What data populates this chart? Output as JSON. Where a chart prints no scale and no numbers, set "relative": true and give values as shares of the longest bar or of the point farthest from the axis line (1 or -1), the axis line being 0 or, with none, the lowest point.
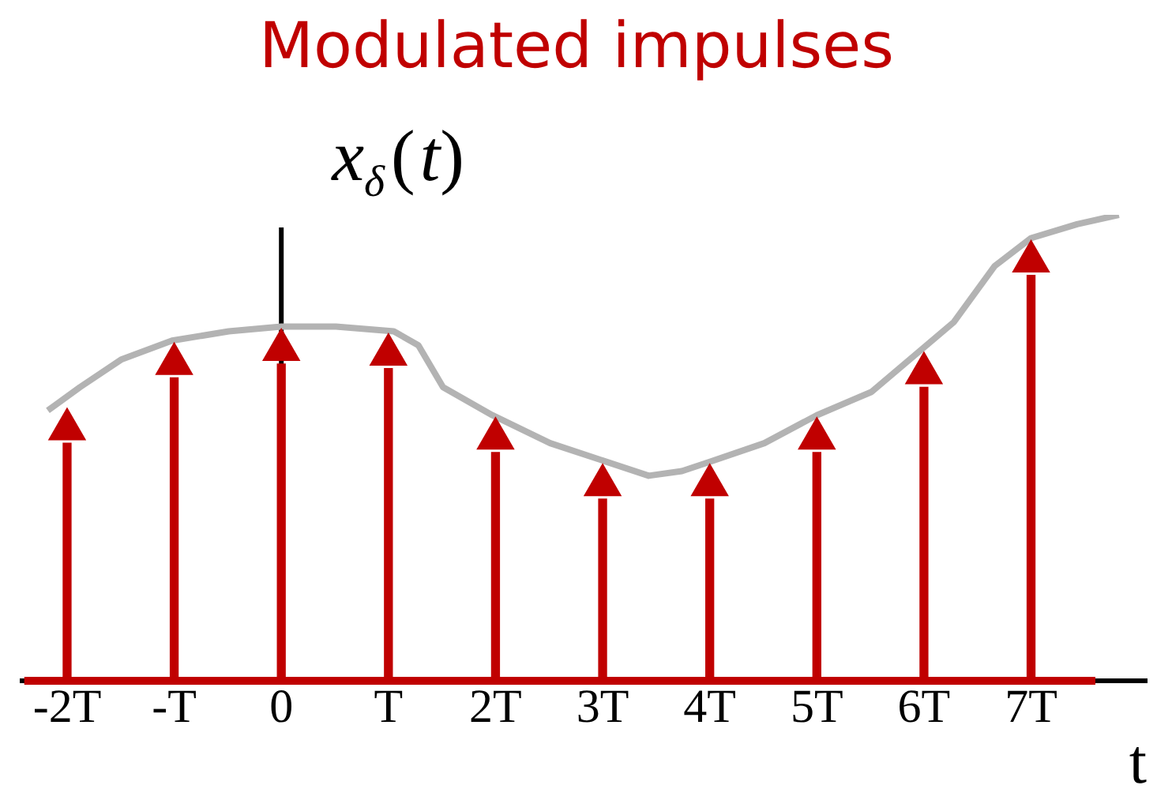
{
  "chart_data": {
    "type": "bar",
    "title": "Modulated impulses",
    "xlabel": "t",
    "ylabel": "x$_{δ}$(t)",
    "relative": true,
    "legend": false,
    "xlim": [
      -2.42,
      8.08
    ],
    "xticks": [
      {
        "value": -2,
        "label": "-2T"
      },
      {
        "value": -1,
        "label": "-T"
      },
      {
        "value": 0,
        "label": "0"
      },
      {
        "value": 1,
        "label": "T"
      },
      {
        "value": 2,
        "label": "2T"
      },
      {
        "value": 3,
        "label": "3T"
      },
      {
        "value": 4,
        "label": "4T"
      },
      {
        "value": 5,
        "label": "5T"
      },
      {
        "value": 6,
        "label": "6T"
      },
      {
        "value": 7,
        "label": "7T"
      }
    ],
    "series": [
      {
        "color": "#c00000",
        "x": [
          -2,
          -1,
          0,
          1,
          2,
          3,
          4,
          5,
          6,
          7
        ],
        "values": [
          0.51,
          0.65,
          0.68,
          0.67,
          0.49,
          0.39,
          0.39,
          0.49,
          0.63,
          0.87
        ]
      },
      {
        "type": "scatter",
        "color": "#c00000",
        "marker": "triangle",
        "x": [
          -2,
          -1,
          0,
          1,
          2,
          3,
          4,
          5,
          6,
          7
        ],
        "values": [
          0.54,
          0.68,
          0.71,
          0.7,
          0.52,
          0.42,
          0.42,
          0.52,
          0.66,
          0.9
        ]
      },
      {
        "type": "line",
        "color": "#b3b3b3",
        "x": [
          -2.18,
          -1.88,
          -1.49,
          -1.02,
          -0.49,
          0,
          0.51,
          1.05,
          1.28,
          1.51,
          1.97,
          2.51,
          3.02,
          3.43,
          3.74,
          4,
          4.51,
          5,
          5.51,
          6,
          6.28,
          6.66,
          7,
          7.43,
          7.82
        ],
        "values": [
          0.58,
          0.63,
          0.69,
          0.73,
          0.75,
          0.76,
          0.76,
          0.75,
          0.72,
          0.63,
          0.57,
          0.51,
          null,
          0.44,
          0.45,
          0.47,
          0.51,
          0.57,
          0.62,
          null,
          0.77,
          0.89,
          0.95,
          0.98,
          1.0
        ]
      }
    ]
  }
}
